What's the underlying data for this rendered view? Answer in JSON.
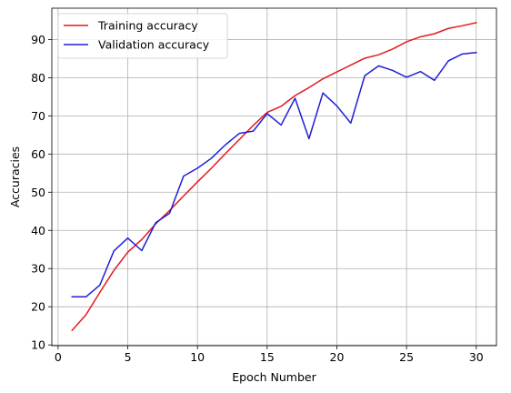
{
  "chart_data": {
    "type": "line",
    "xlabel": "Epoch Number",
    "ylabel": "Accuracies",
    "xlim": [
      -0.45,
      31.45
    ],
    "ylim": [
      9.8,
      98.2
    ],
    "xticks": [
      0,
      5,
      10,
      15,
      20,
      25,
      30
    ],
    "yticks": [
      10,
      20,
      30,
      40,
      50,
      60,
      70,
      80,
      90
    ],
    "grid": true,
    "legend_position": "top-left",
    "x": [
      1,
      2,
      3,
      4,
      5,
      6,
      7,
      8,
      9,
      10,
      11,
      12,
      13,
      14,
      15,
      16,
      17,
      18,
      19,
      20,
      21,
      22,
      23,
      24,
      25,
      26,
      27,
      28,
      29,
      30
    ],
    "series": [
      {
        "name": "Training accuracy",
        "color": "#e31a1c",
        "values": [
          13.8,
          17.9,
          23.8,
          29.5,
          34.3,
          37.6,
          41.7,
          45.2,
          49.0,
          52.7,
          56.3,
          60.1,
          63.8,
          67.5,
          70.9,
          72.5,
          75.3,
          77.4,
          79.7,
          81.5,
          83.3,
          85.1,
          86.0,
          87.5,
          89.4,
          90.7,
          91.5,
          92.9,
          93.6,
          94.4
        ]
      },
      {
        "name": "Validation accuracy",
        "color": "#1f1fd6",
        "values": [
          22.6,
          22.6,
          25.7,
          34.6,
          38.0,
          34.7,
          42.0,
          44.5,
          54.2,
          56.3,
          58.9,
          62.4,
          65.4,
          66.0,
          70.6,
          67.6,
          74.6,
          64.0,
          76.0,
          72.6,
          68.1,
          80.5,
          83.1,
          81.9,
          80.1,
          81.6,
          79.3,
          84.4,
          86.2,
          86.6
        ]
      }
    ]
  }
}
